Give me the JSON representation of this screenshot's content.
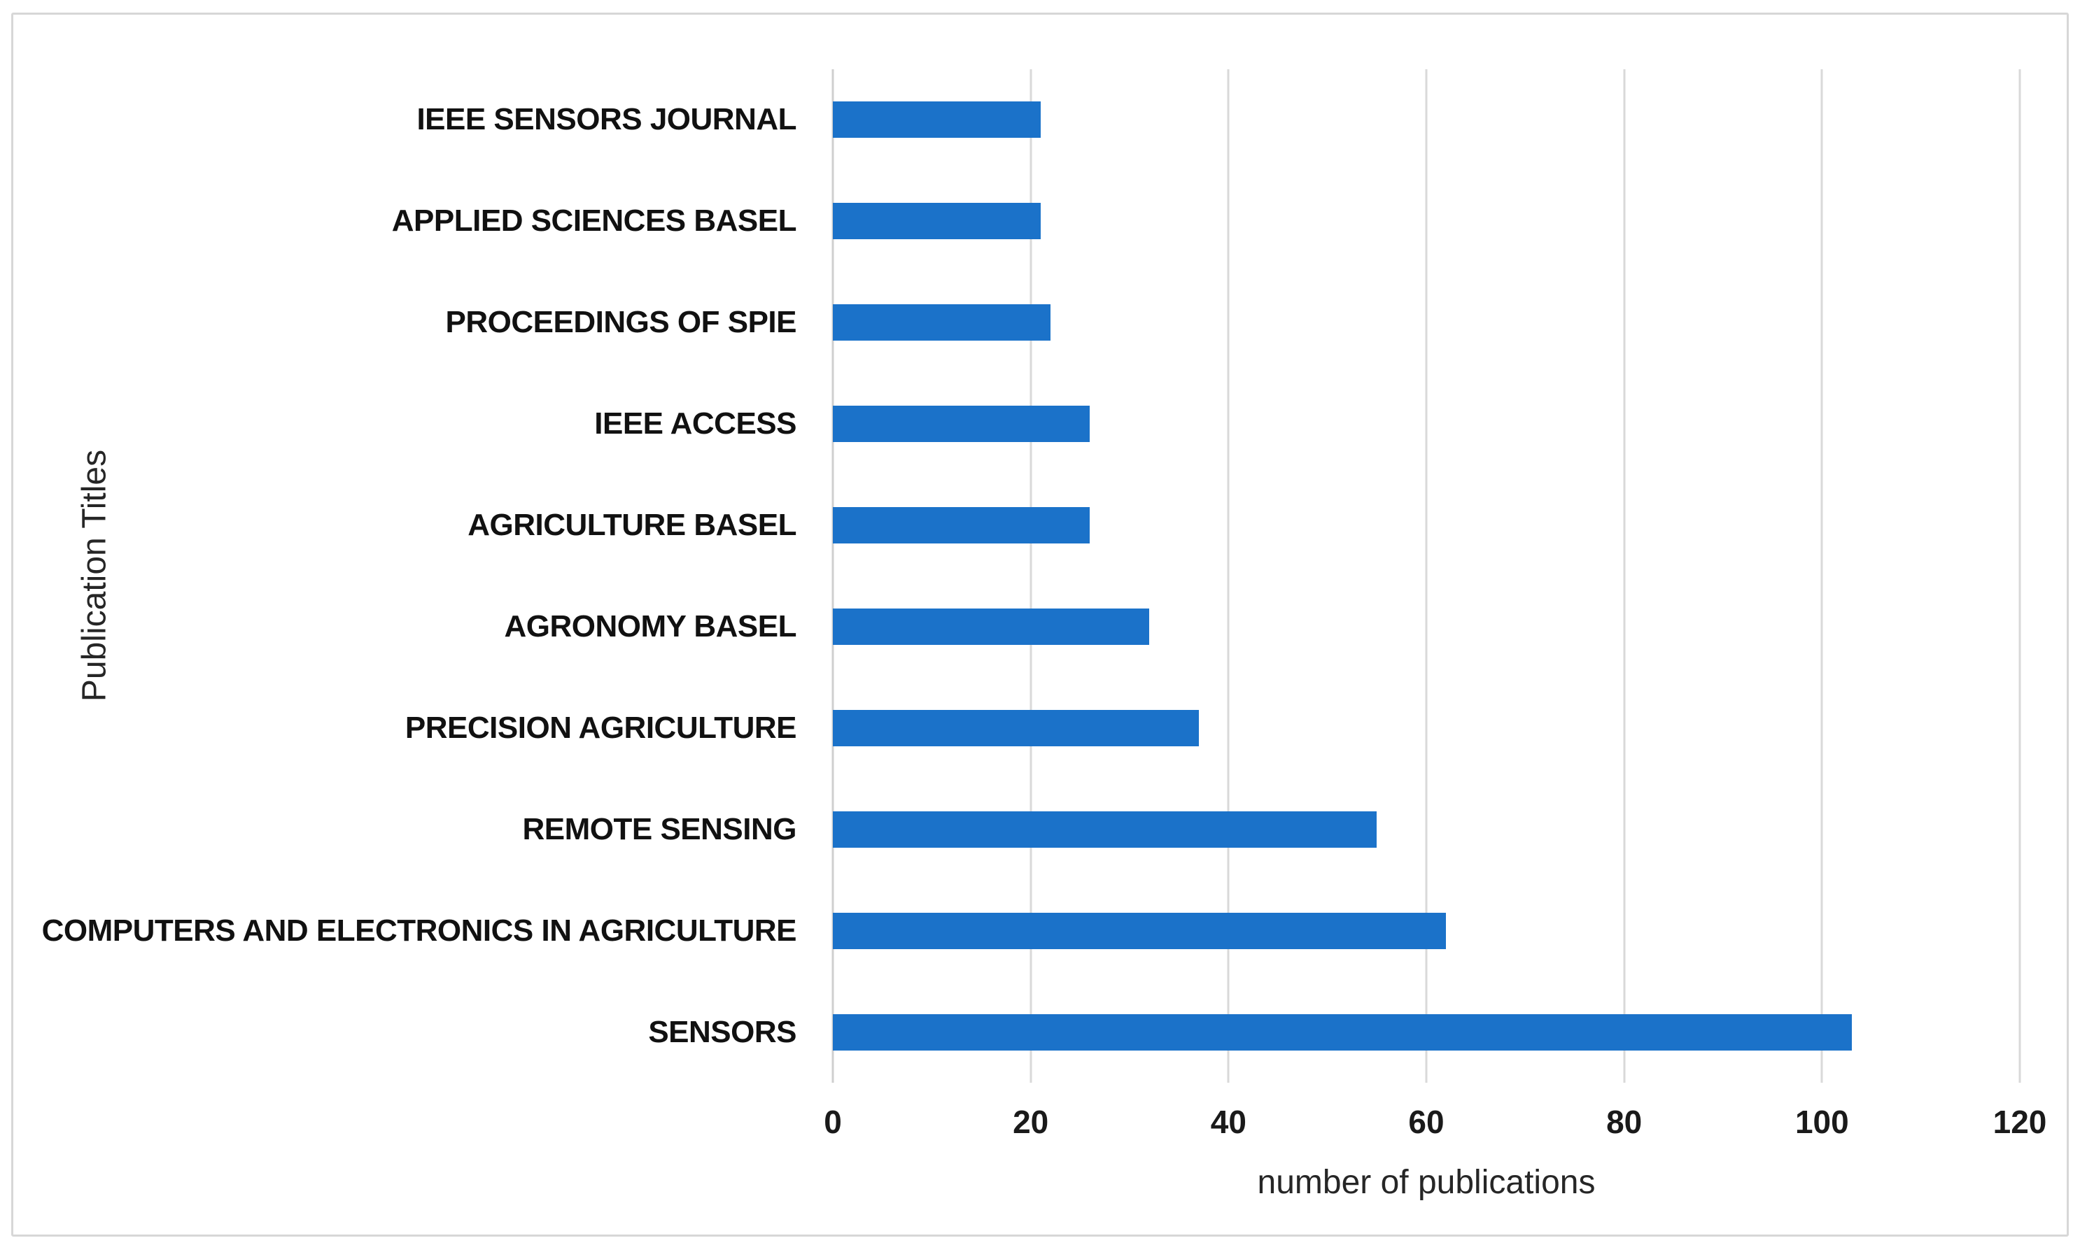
{
  "figure": {
    "background": "#ffffff",
    "border_color": "#d7d7d7"
  },
  "chart_data": {
    "type": "bar",
    "orientation": "horizontal",
    "title": "",
    "xlabel": "number of publications",
    "ylabel": "Publication Titles",
    "categories": [
      "IEEE SENSORS JOURNAL",
      "APPLIED SCIENCES BASEL",
      "PROCEEDINGS OF SPIE",
      "IEEE ACCESS",
      "AGRICULTURE BASEL",
      "AGRONOMY BASEL",
      "PRECISION AGRICULTURE",
      "REMOTE SENSING",
      "COMPUTERS AND ELECTRONICS IN AGRICULTURE",
      "SENSORS"
    ],
    "values": [
      21,
      21,
      22,
      26,
      26,
      32,
      37,
      55,
      62,
      103
    ],
    "xlim": [
      0,
      120
    ],
    "xticks": [
      0,
      20,
      40,
      60,
      80,
      100,
      120
    ],
    "grid": "vertical",
    "legend": "none",
    "colors": {
      "bar": "#1b72c9",
      "gridline": "#d9d9d9",
      "zero_line": "#cfcfcf",
      "category_label": "#111111",
      "tick_label": "#1a1a1a",
      "axis_title": "#262626"
    }
  }
}
